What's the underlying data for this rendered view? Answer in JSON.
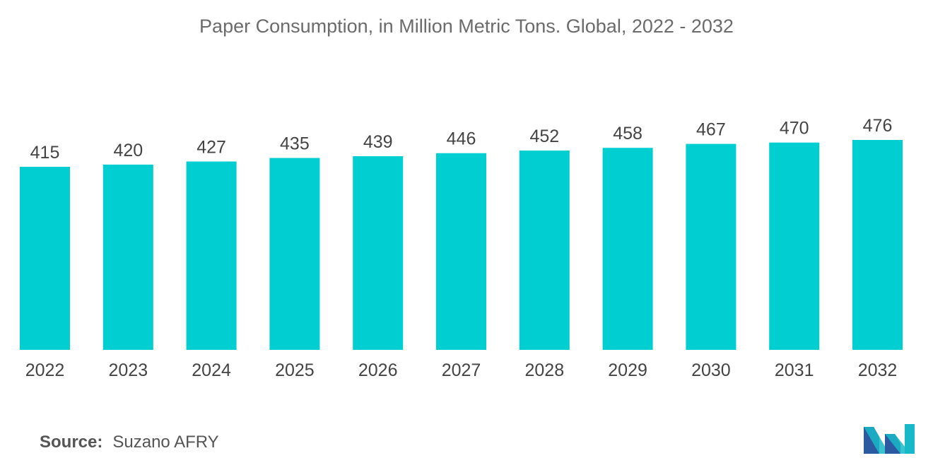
{
  "chart_data": {
    "type": "bar",
    "title": "Paper Consumption, in Million Metric Tons. Global, 2022 - 2032",
    "categories": [
      "2022",
      "2023",
      "2024",
      "2025",
      "2026",
      "2027",
      "2028",
      "2029",
      "2030",
      "2031",
      "2032"
    ],
    "values": [
      415,
      420,
      427,
      435,
      439,
      446,
      452,
      458,
      467,
      470,
      476
    ],
    "xlabel": "",
    "ylabel": "",
    "grid": false,
    "bar_color": "#00ced1"
  },
  "source": {
    "label": "Source:",
    "text": "Suzano AFRY"
  },
  "colors": {
    "bar": "#00ced1",
    "logo_dark": "#2c5aa0",
    "logo_light": "#17b8c8"
  }
}
